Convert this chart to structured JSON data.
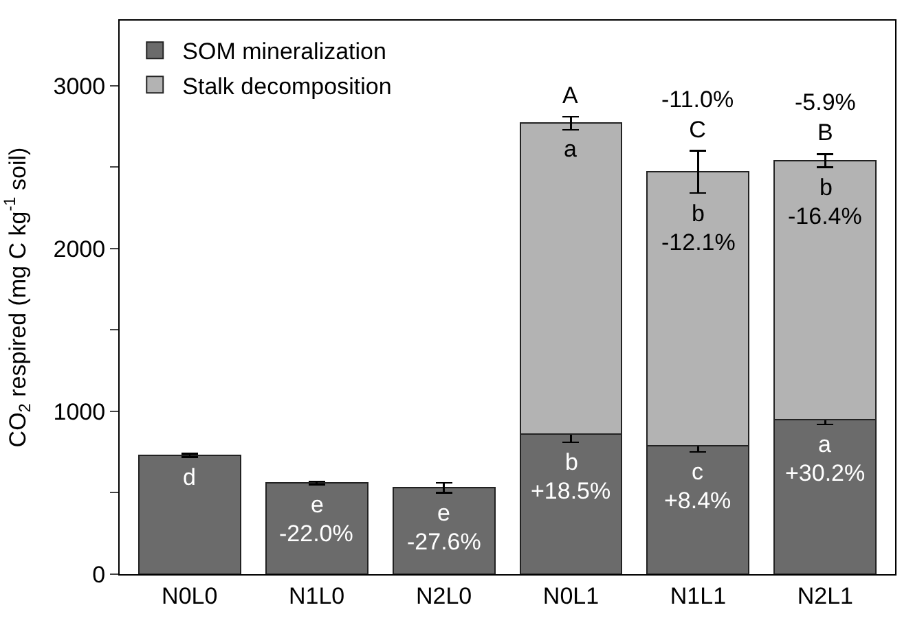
{
  "chart_data": {
    "type": "bar",
    "stacked": true,
    "categories": [
      "N0L0",
      "N1L0",
      "N2L0",
      "N0L1",
      "N1L1",
      "N2L1"
    ],
    "ylabel": "CO$_{2}$ respired (mg C kg$^{-1}$ soil)",
    "series": [
      {
        "name": "SOM mineralization",
        "color": "#6b6b6b",
        "values": [
          730,
          560,
          530,
          860,
          790,
          950
        ],
        "errors": [
          10,
          10,
          30,
          50,
          40,
          30
        ],
        "value_labels": [
          "d",
          "e",
          "e",
          "b",
          "c",
          "a"
        ]
      },
      {
        "name": "Stalk decomposition",
        "color": "#b3b3b3",
        "values": [
          null,
          null,
          null,
          1910,
          1680,
          1590
        ],
        "errors": [
          null,
          null,
          null,
          40,
          130,
          40
        ],
        "value_labels": [
          null,
          null,
          null,
          "a",
          "b",
          "b"
        ]
      }
    ],
    "annotations": [
      {
        "text": "-22.0%",
        "x": "N1L0",
        "y": 560
      },
      {
        "text": "-27.6%",
        "x": "N2L0",
        "y": 530
      },
      {
        "text": "+18.5%",
        "x": "N0L1",
        "y": 860
      },
      {
        "text": "+8.4%",
        "x": "N1L1",
        "y": 790
      },
      {
        "text": "+30.2%",
        "x": "N2L1",
        "y": 950
      },
      {
        "text": "-12.1%",
        "x": "N1L1",
        "y": 2470
      },
      {
        "text": "-16.4%",
        "x": "N2L1",
        "y": 2540
      },
      {
        "text": "A",
        "x": "N0L1",
        "y": 2810
      },
      {
        "text": "-11.0%\nC",
        "x": "N1L1",
        "y": 2600
      },
      {
        "text": "-5.9%\nB",
        "x": "N2L1",
        "y": 2580
      }
    ],
    "ylim": [
      0,
      3400
    ],
    "yticks": [
      0,
      {
        "value": 500,
        "label": null
      },
      1000,
      {
        "value": 1500,
        "label": null
      },
      2000,
      {
        "value": 2500,
        "label": null
      },
      3000
    ],
    "legend": "top left"
  }
}
